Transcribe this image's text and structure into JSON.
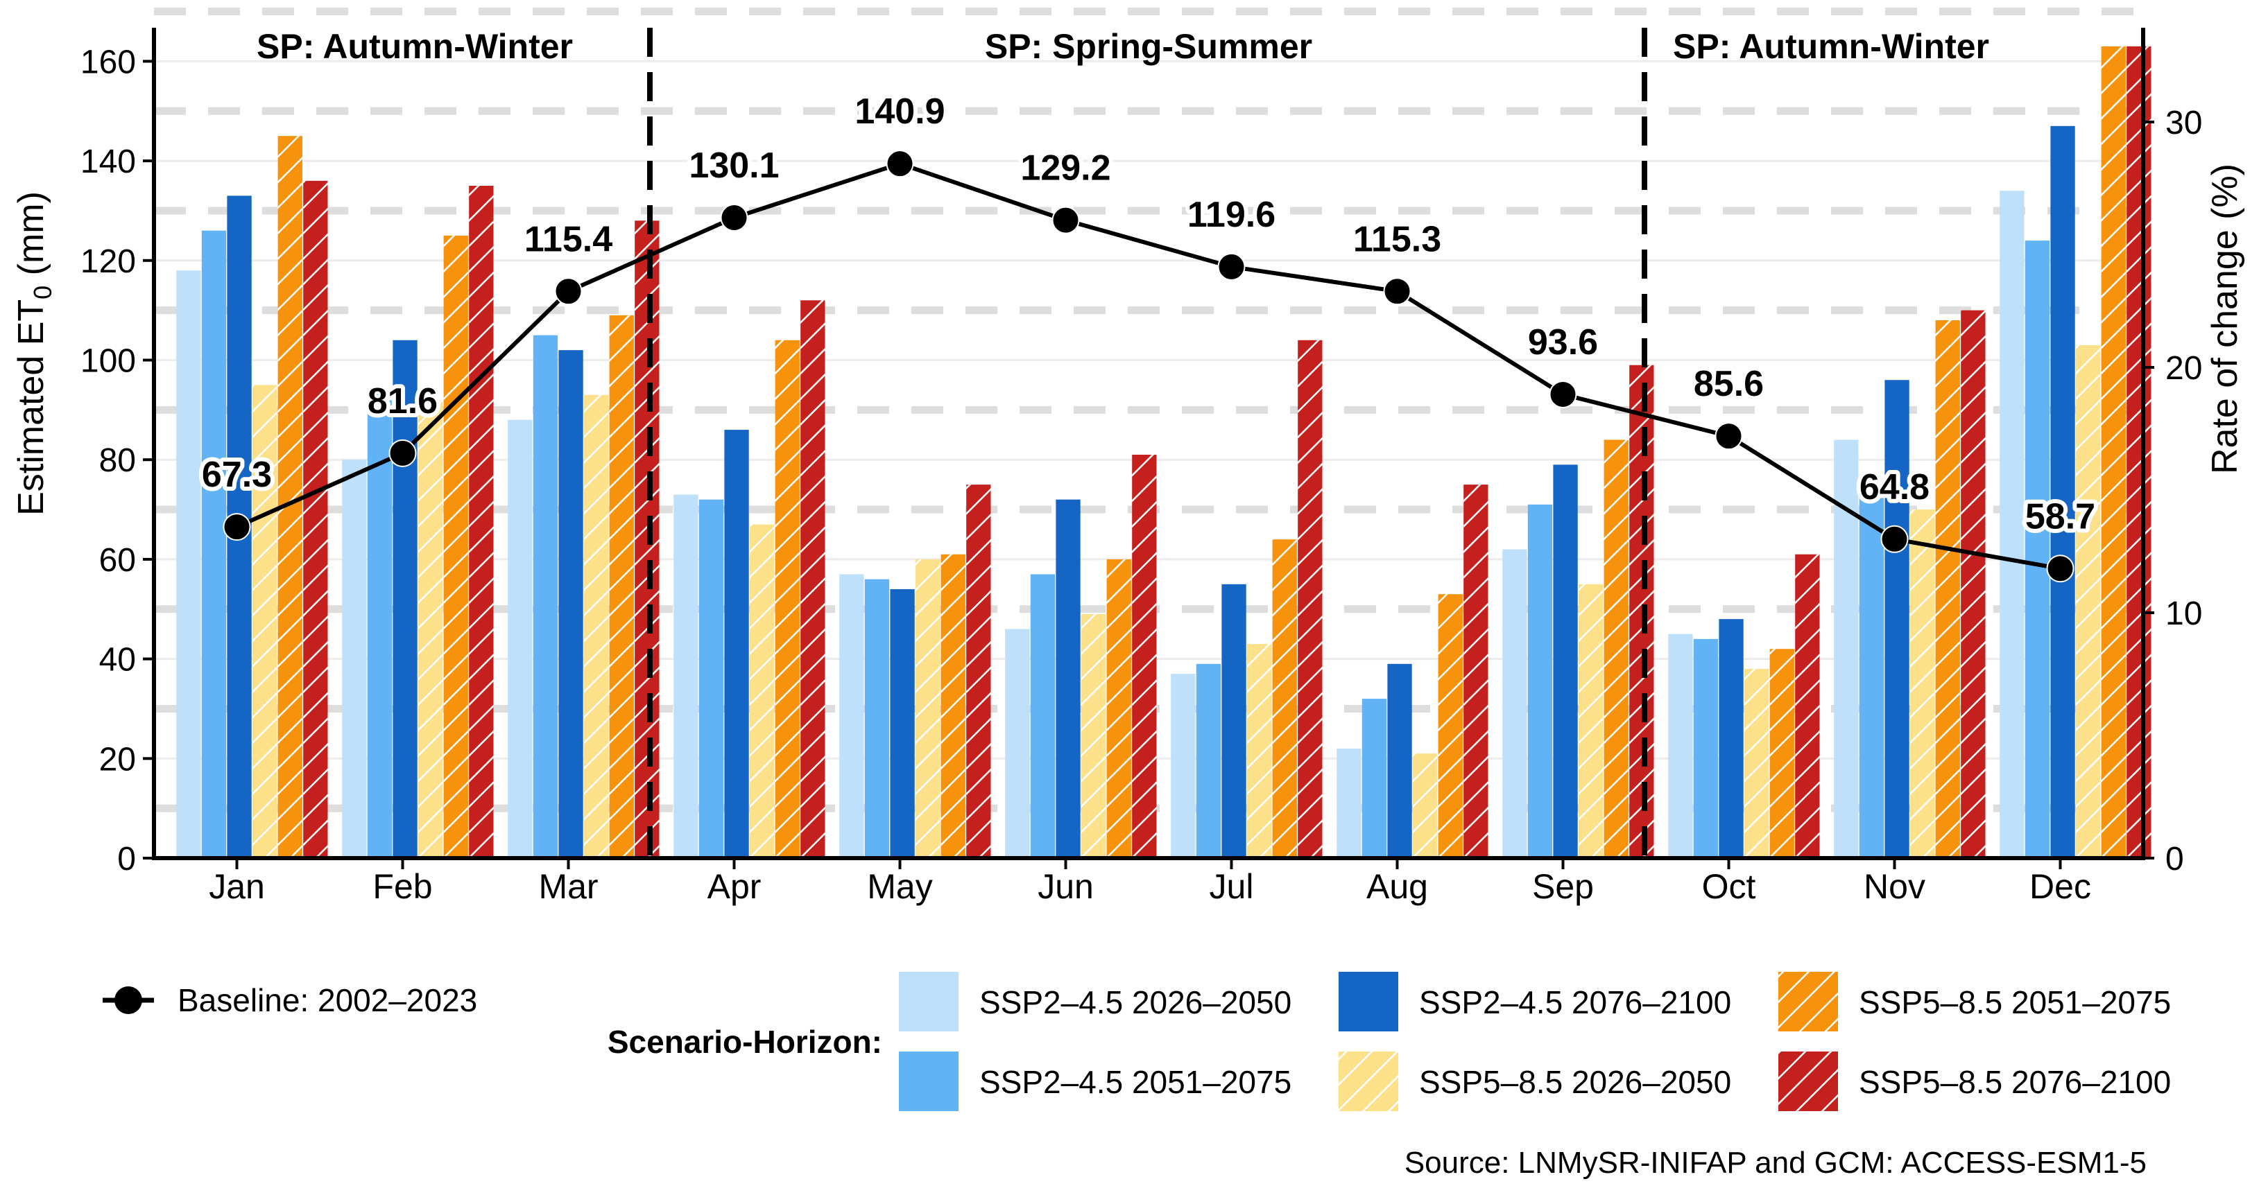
{
  "chart_data": {
    "type": "bar",
    "ylabel_left_main": "Estimated ET",
    "ylabel_left_sub": "0",
    "ylabel_left_unit": " (mm)",
    "ylabel_right": "Rate of change (%)",
    "left_ylim": [
      0,
      160
    ],
    "left_ticks": [
      "0",
      "20",
      "40",
      "60",
      "80",
      "100",
      "120",
      "140",
      "160"
    ],
    "right_ylim": [
      0,
      32.5
    ],
    "right_ticks": [
      "0",
      "10",
      "20",
      "30"
    ],
    "categories": [
      "Jan",
      "Feb",
      "Mar",
      "Apr",
      "May",
      "Jun",
      "Jul",
      "Aug",
      "Sep",
      "Oct",
      "Nov",
      "Dec"
    ],
    "series": [
      {
        "name": "SSP2–4.5 2026–2050",
        "color": "#bfe0fa",
        "hatch": false,
        "values": [
          118,
          80,
          88,
          73,
          57,
          46,
          37,
          22,
          62,
          45,
          84,
          134
        ]
      },
      {
        "name": "SSP2–4.5 2051–2075",
        "color": "#62b3f5",
        "hatch": false,
        "values": [
          126,
          94,
          105,
          72,
          56,
          57,
          39,
          32,
          71,
          44,
          74,
          124
        ]
      },
      {
        "name": "SSP2–4.5 2076–2100",
        "color": "#1565c4",
        "hatch": false,
        "values": [
          133,
          104,
          102,
          86,
          54,
          72,
          55,
          39,
          79,
          48,
          96,
          147
        ]
      },
      {
        "name": "SSP5–8.5 2026–2050",
        "color": "#fde08a",
        "hatch": true,
        "values": [
          95,
          92,
          93,
          67,
          60,
          49,
          43,
          21,
          55,
          38,
          70,
          103
        ]
      },
      {
        "name": "SSP5–8.5 2051–2075",
        "color": "#f7920d",
        "hatch": true,
        "values": [
          145,
          125,
          109,
          104,
          61,
          60,
          64,
          53,
          84,
          42,
          108,
          163
        ]
      },
      {
        "name": "SSP5–8.5 2076–2100",
        "color": "#c4201e",
        "hatch": true,
        "values": [
          136,
          135,
          128,
          112,
          75,
          81,
          104,
          75,
          99,
          61,
          110,
          163
        ]
      }
    ],
    "baseline": {
      "name": "Baseline: 2002–2023",
      "rate_of_change": [
        13.5,
        16.5,
        23.1,
        26.1,
        28.3,
        26.0,
        24.1,
        23.1,
        18.9,
        17.2,
        13.0,
        11.8
      ],
      "labels": [
        "67.3",
        "81.6",
        "115.4",
        "130.1",
        "140.9",
        "129.2",
        "119.6",
        "115.3",
        "93.6",
        "85.6",
        "64.8",
        "58.7"
      ]
    },
    "season_labels": [
      "SP: Autumn-Winter",
      "SP: Spring-Summer",
      "SP: Autumn-Winter"
    ],
    "legend_title": "Scenario-Horizon:",
    "source": "Source: LNMySR-INIFAP and GCM: ACCESS-ESM1-5"
  }
}
